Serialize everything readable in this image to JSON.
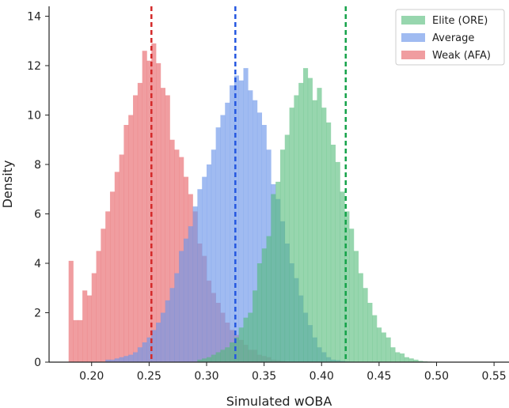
{
  "chart_data": {
    "type": "histogram",
    "xlabel": "Simulated wOBA",
    "ylabel": "Density",
    "xlim": [
      0.163,
      0.563
    ],
    "ylim": [
      0,
      14.4
    ],
    "xticks": [
      "0.20",
      "0.25",
      "0.30",
      "0.35",
      "0.40",
      "0.45",
      "0.50",
      "0.55"
    ],
    "xtick_values": [
      0.2,
      0.25,
      0.3,
      0.35,
      0.4,
      0.45,
      0.5,
      0.55
    ],
    "yticks": [
      "0",
      "2",
      "4",
      "6",
      "8",
      "10",
      "12",
      "14"
    ],
    "ytick_values": [
      0,
      2,
      4,
      6,
      8,
      10,
      12,
      14
    ],
    "grid": false,
    "legend_position": "top-right",
    "bin_width": 0.004,
    "series": [
      {
        "name": "Weak (AFA)",
        "color": "#e8696d",
        "opacity": 0.65,
        "bin_start": 0.18,
        "mean": 0.252,
        "density": [
          4.1,
          1.7,
          1.7,
          2.9,
          2.7,
          3.6,
          4.5,
          5.4,
          6.1,
          6.9,
          7.7,
          8.4,
          9.6,
          10.0,
          10.8,
          11.3,
          12.6,
          12.2,
          12.9,
          12.1,
          11.1,
          10.8,
          9.0,
          8.6,
          8.3,
          7.5,
          6.8,
          6.1,
          4.8,
          4.3,
          3.3,
          2.8,
          2.4,
          2.0,
          1.6,
          1.3,
          1.1,
          0.9,
          0.7,
          0.5,
          0.5,
          0.3,
          0.25,
          0.2,
          0.1,
          0.08,
          0.05,
          0.03,
          0.02,
          0.01
        ]
      },
      {
        "name": "Average",
        "color": "#6d96ea",
        "opacity": 0.65,
        "bin_start": 0.212,
        "mean": 0.325,
        "density": [
          0.1,
          0.1,
          0.15,
          0.2,
          0.25,
          0.3,
          0.4,
          0.6,
          0.8,
          1.0,
          1.3,
          1.6,
          2.0,
          2.5,
          3.0,
          3.6,
          4.5,
          5.0,
          5.5,
          6.3,
          7.0,
          7.5,
          8.0,
          8.6,
          9.5,
          10.0,
          10.5,
          11.2,
          11.6,
          11.4,
          11.9,
          11.0,
          10.6,
          10.1,
          9.6,
          8.6,
          7.2,
          6.6,
          5.7,
          4.8,
          4.0,
          3.4,
          2.7,
          2.0,
          1.5,
          1.0,
          0.6,
          0.4,
          0.2,
          0.1,
          0.08,
          0.05,
          0.03,
          0.02,
          0.01
        ]
      },
      {
        "name": "Elite (ORE)",
        "color": "#52bb78",
        "opacity": 0.6,
        "bin_start": 0.292,
        "mean": 0.421,
        "density": [
          0.1,
          0.15,
          0.2,
          0.3,
          0.4,
          0.5,
          0.6,
          0.8,
          1.0,
          1.4,
          1.8,
          2.0,
          2.9,
          4.0,
          4.6,
          5.1,
          6.8,
          7.3,
          8.6,
          9.2,
          10.3,
          10.8,
          11.3,
          11.9,
          11.5,
          10.6,
          11.1,
          10.3,
          9.7,
          8.8,
          8.1,
          6.9,
          6.1,
          5.4,
          4.5,
          3.6,
          3.0,
          2.4,
          1.9,
          1.4,
          1.2,
          1.0,
          0.6,
          0.4,
          0.35,
          0.2,
          0.15,
          0.1,
          0.05,
          0.03,
          0.02,
          0.01
        ]
      }
    ],
    "mean_lines": [
      {
        "series": "Weak (AFA)",
        "value": 0.252,
        "color": "#d42a2a"
      },
      {
        "series": "Average",
        "value": 0.325,
        "color": "#2457e0"
      },
      {
        "series": "Elite (ORE)",
        "value": 0.421,
        "color": "#16a34a"
      }
    ]
  }
}
